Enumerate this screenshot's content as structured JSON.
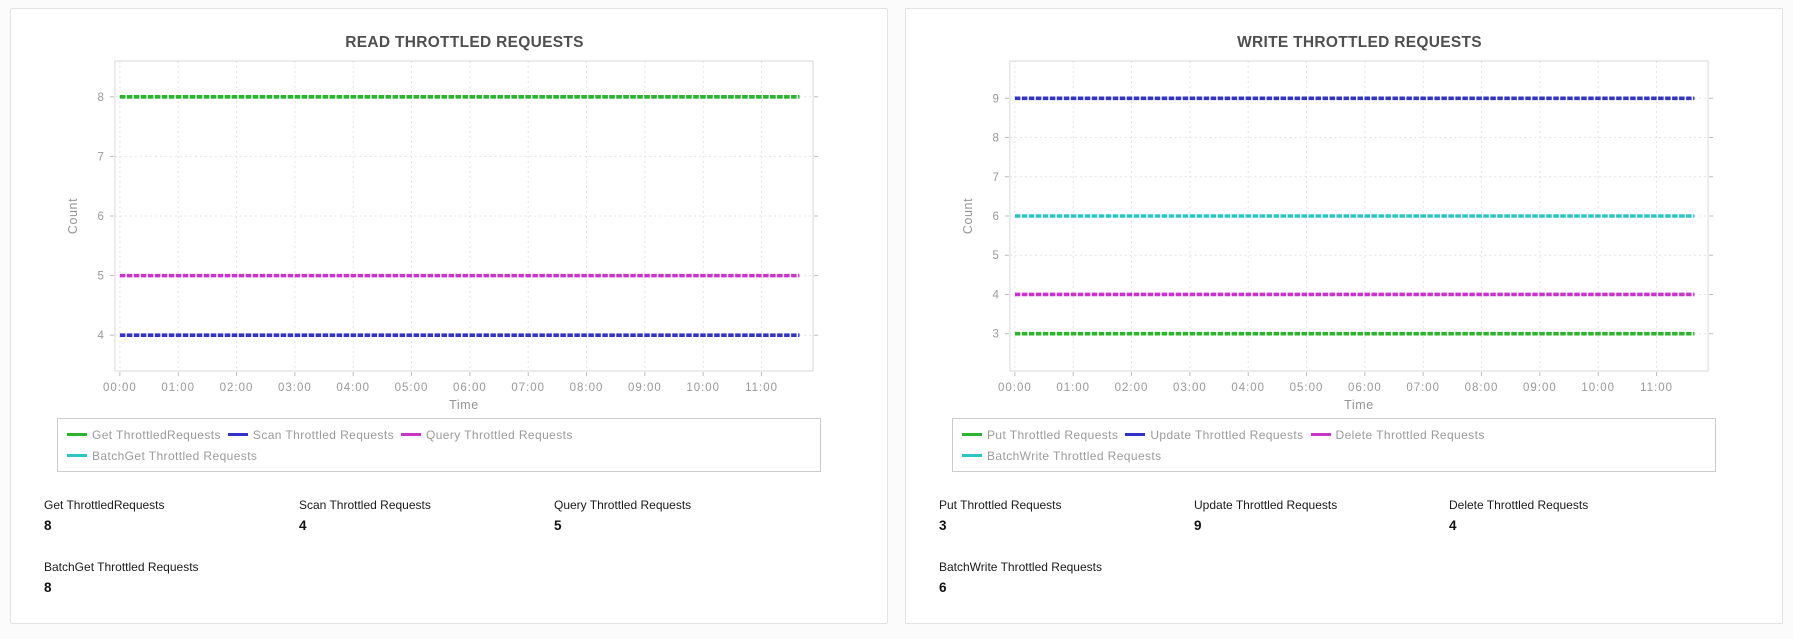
{
  "chart_data": [
    {
      "type": "line",
      "title": "READ THROTTLED REQUESTS",
      "xlabel": "Time",
      "ylabel": "Count",
      "x_tick_labels": [
        "00:00",
        "01:00",
        "02:00",
        "03:00",
        "04:00",
        "05:00",
        "06:00",
        "07:00",
        "08:00",
        "09:00",
        "10:00",
        "11:00"
      ],
      "x_hours": [
        0,
        11.65
      ],
      "yticks": [
        4,
        5,
        6,
        7,
        8
      ],
      "ylim": [
        3.4,
        8.6
      ],
      "grid": true,
      "legend_position": "bottom",
      "series": [
        {
          "name": "Get ThrottledRequests",
          "color": "#2db42d",
          "value": 8
        },
        {
          "name": "Scan Throttled Requests",
          "color": "#3333cc",
          "value": 4
        },
        {
          "name": "Query Throttled Requests",
          "color": "#cc33cc",
          "value": 5
        },
        {
          "name": "BatchGet Throttled Requests",
          "color": "#2cc5c5",
          "value": 8
        }
      ],
      "stats": [
        {
          "label": "Get ThrottledRequests",
          "value": "8"
        },
        {
          "label": "Scan Throttled Requests",
          "value": "4"
        },
        {
          "label": "Query Throttled Requests",
          "value": "5"
        },
        {
          "label": "BatchGet Throttled Requests",
          "value": "8"
        }
      ]
    },
    {
      "type": "line",
      "title": "WRITE THROTTLED REQUESTS",
      "xlabel": "Time",
      "ylabel": "Count",
      "x_tick_labels": [
        "00:00",
        "01:00",
        "02:00",
        "03:00",
        "04:00",
        "05:00",
        "06:00",
        "07:00",
        "08:00",
        "09:00",
        "10:00",
        "11:00"
      ],
      "x_hours": [
        0,
        11.65
      ],
      "yticks": [
        3,
        4,
        5,
        6,
        7,
        8,
        9
      ],
      "ylim": [
        2.05,
        9.95
      ],
      "grid": true,
      "legend_position": "bottom",
      "series": [
        {
          "name": "Put Throttled Requests",
          "color": "#2db42d",
          "value": 3
        },
        {
          "name": "Update Throttled Requests",
          "color": "#3333cc",
          "value": 9
        },
        {
          "name": "Delete Throttled Requests",
          "color": "#cc33cc",
          "value": 4
        },
        {
          "name": "BatchWrite Throttled Requests",
          "color": "#2cc5c5",
          "value": 6
        }
      ],
      "stats": [
        {
          "label": "Put Throttled Requests",
          "value": "3"
        },
        {
          "label": "Update Throttled Requests",
          "value": "9"
        },
        {
          "label": "Delete Throttled Requests",
          "value": "4"
        },
        {
          "label": "BatchWrite Throttled Requests",
          "value": "6"
        }
      ]
    }
  ]
}
